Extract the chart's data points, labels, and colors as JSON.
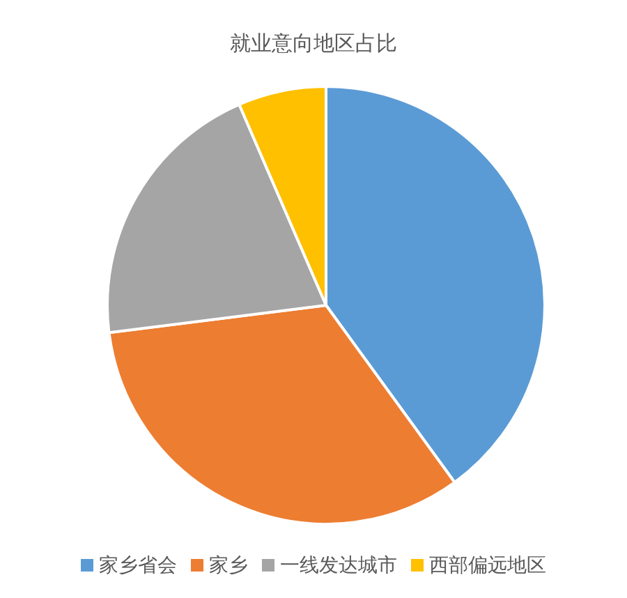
{
  "chart_data": {
    "type": "pie",
    "title": "就业意向地区占比",
    "categories": [
      "家乡省会",
      "家乡",
      "一线发达城市",
      "西部偏远地区"
    ],
    "values": [
      40,
      33,
      20.5,
      6.5
    ],
    "colors": [
      "#5b9bd5",
      "#ed7d31",
      "#a5a5a5",
      "#ffc000"
    ],
    "legend": "bottom"
  }
}
